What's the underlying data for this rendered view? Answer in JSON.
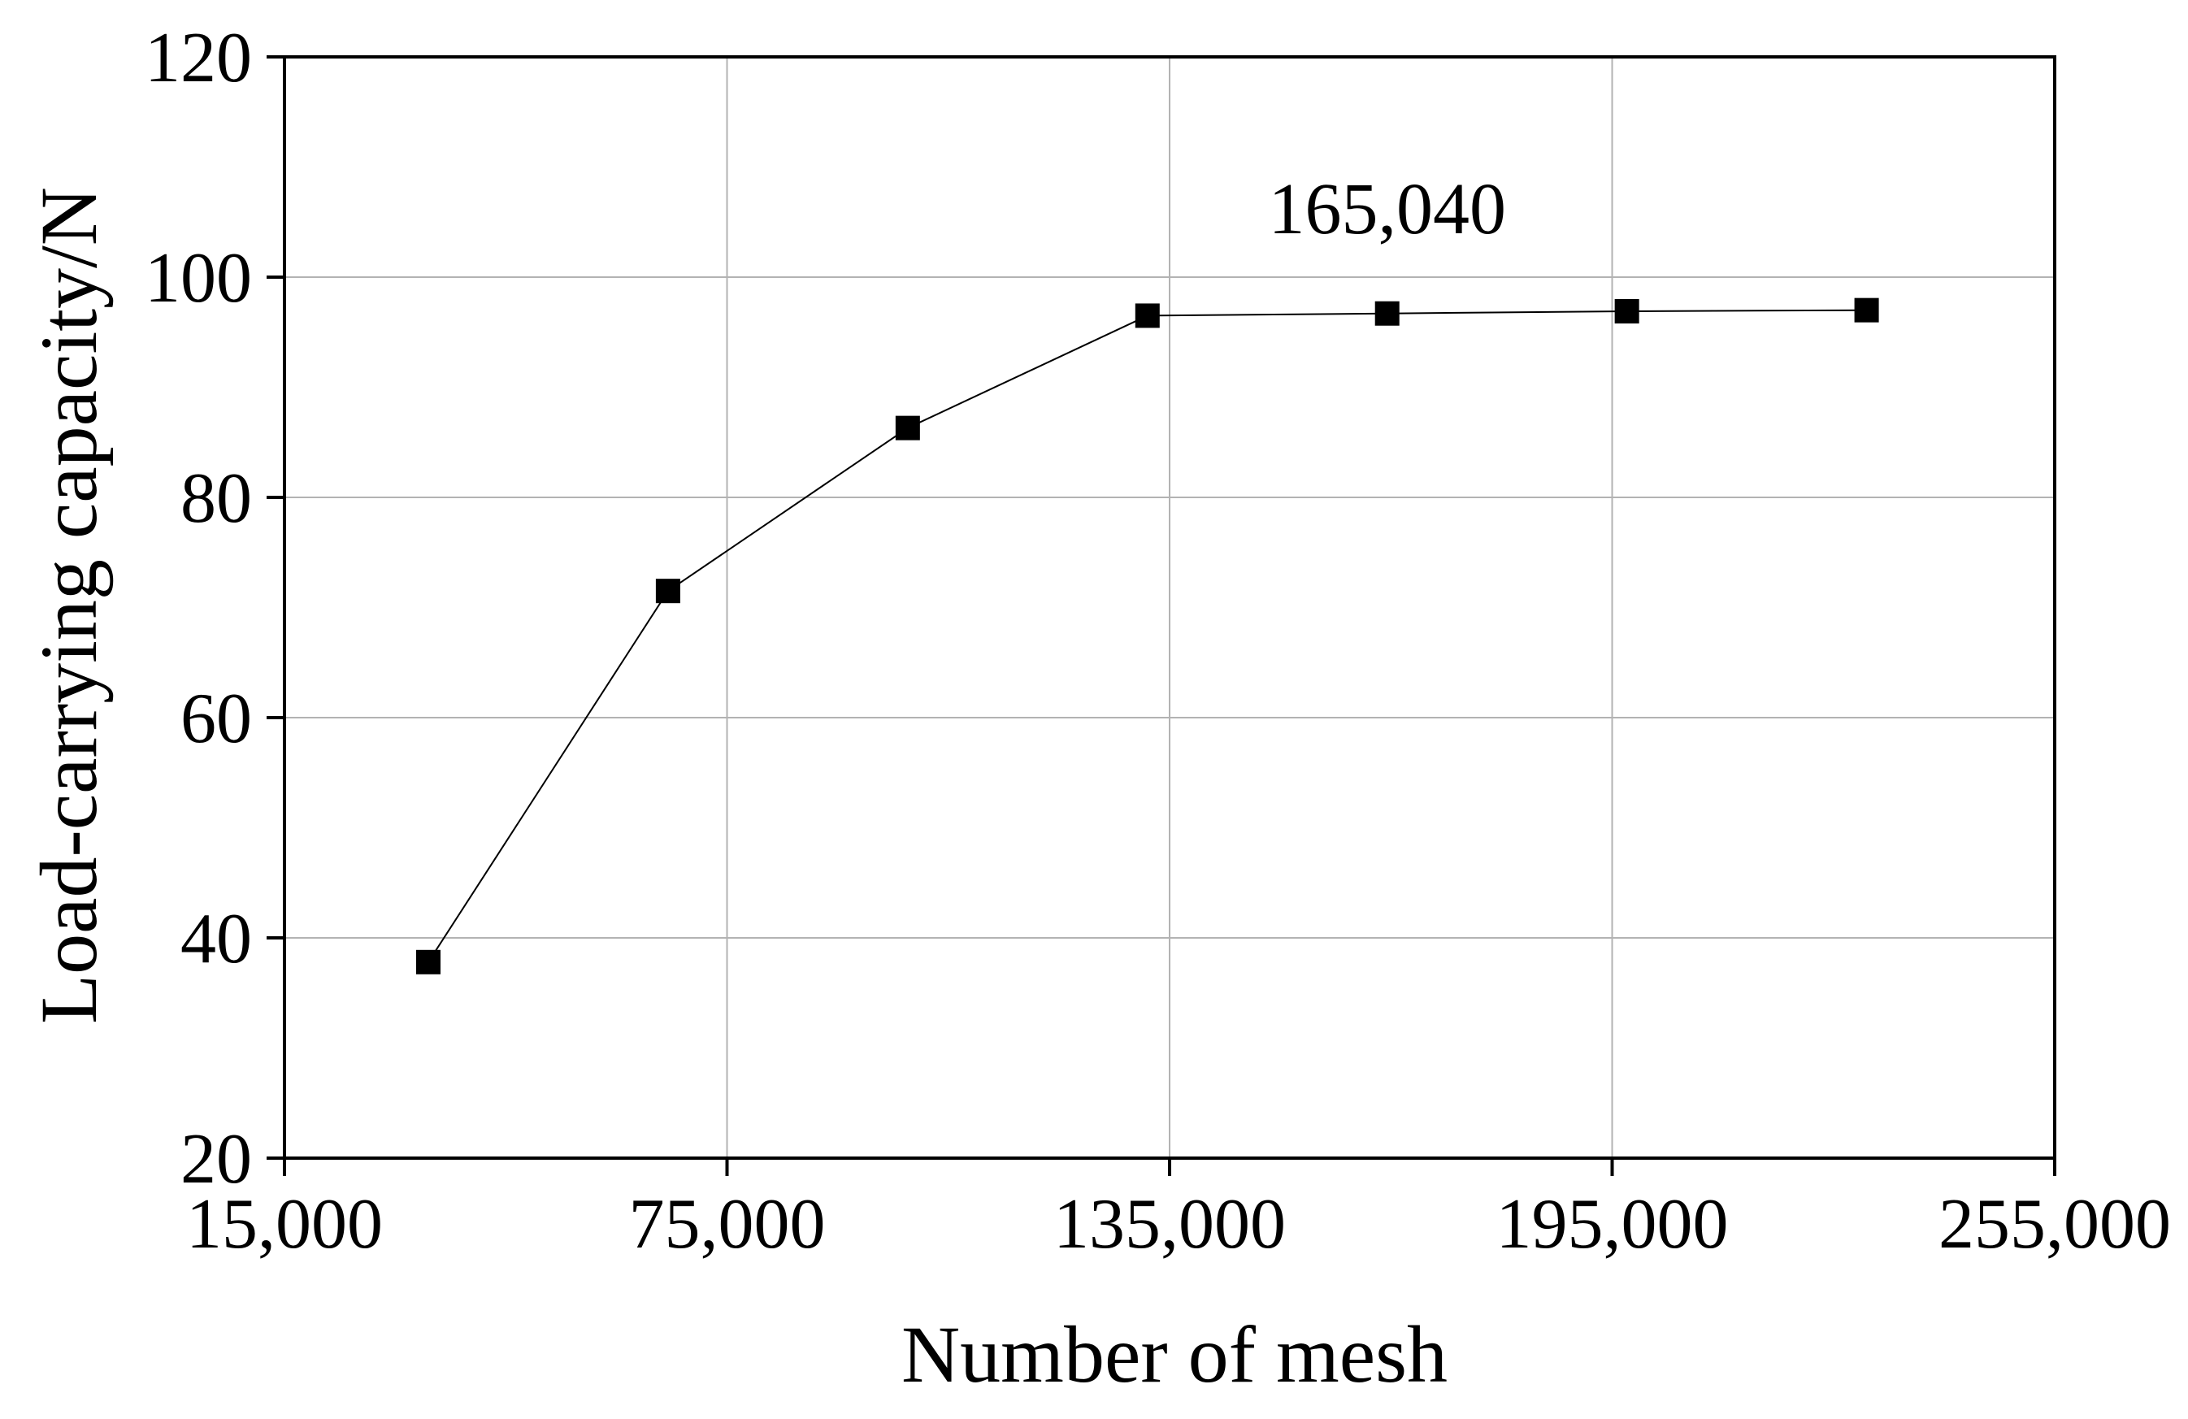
{
  "chart_data": {
    "type": "line",
    "title": "",
    "xlabel": "Number of mesh",
    "ylabel": "Load-carrying capacity/N",
    "xlim": [
      15000,
      255000
    ],
    "ylim": [
      20,
      120
    ],
    "x_ticks": [
      15000,
      75000,
      135000,
      195000,
      255000
    ],
    "x_tick_labels": [
      "15,000",
      "75,000",
      "135,000",
      "195,000",
      "255,000"
    ],
    "y_ticks": [
      20,
      40,
      60,
      80,
      100,
      120
    ],
    "y_tick_labels": [
      "20",
      "40",
      "60",
      "80",
      "100",
      "120"
    ],
    "grid": true,
    "legend": false,
    "series": [
      {
        "marker": "square",
        "color": "#000000",
        "x": [
          34500,
          67000,
          99500,
          132000,
          164500,
          197000,
          229500
        ],
        "y": [
          37.8,
          71.5,
          86.3,
          96.5,
          96.7,
          96.9,
          97.0
        ]
      }
    ],
    "annotations": [
      {
        "text": "165,040",
        "x": 164500,
        "y": 104
      }
    ]
  }
}
